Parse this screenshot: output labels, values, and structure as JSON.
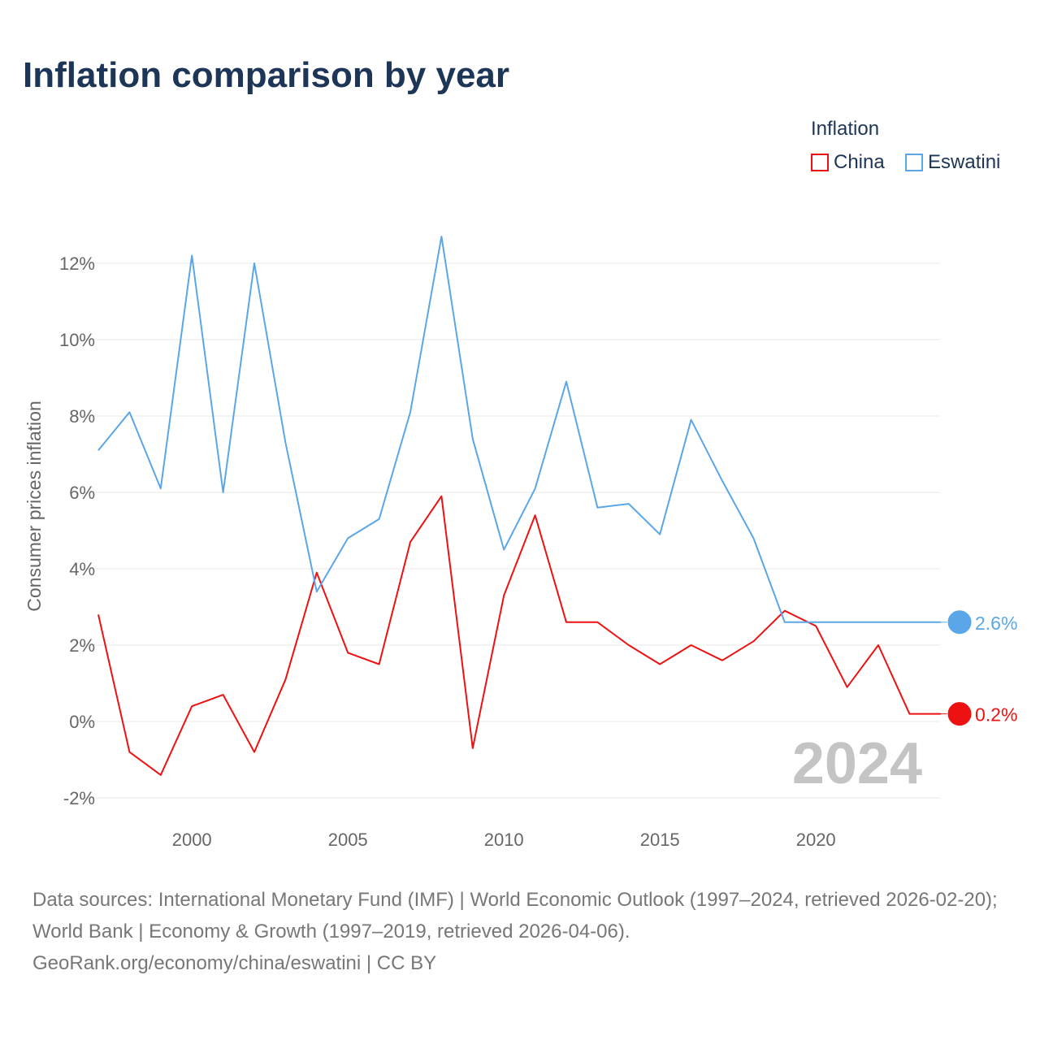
{
  "title": "Inflation comparison by year",
  "legend": {
    "title": "Inflation",
    "items": [
      {
        "label": "China",
        "color": "#ee1111"
      },
      {
        "label": "Eswatini",
        "color": "#5ba6e8"
      }
    ]
  },
  "year_watermark": "2024",
  "source": {
    "line1": "Data sources: International Monetary Fund (IMF) | World Economic Outlook (1997–2024, retrieved 2026-02-20); World Bank | Economy & Growth (1997–2019, retrieved 2026-04-06).",
    "line2": "GeoRank.org/economy/china/eswatini | CC BY"
  },
  "chart_data": {
    "type": "line",
    "title": "Inflation comparison by year",
    "xlabel": "",
    "ylabel": "Consumer prices inflation",
    "xlim": [
      1997,
      2024
    ],
    "ylim": [
      -2.6,
      13
    ],
    "yticks": [
      -2,
      0,
      2,
      4,
      6,
      8,
      10,
      12
    ],
    "ytick_labels": [
      "-2%",
      "0%",
      "2%",
      "4%",
      "6%",
      "8%",
      "10%",
      "12%"
    ],
    "xticks": [
      2000,
      2005,
      2010,
      2015,
      2020
    ],
    "xtick_labels": [
      "2000",
      "2005",
      "2010",
      "2015",
      "2020"
    ],
    "grid": true,
    "legend_position": "top-right",
    "x": [
      1997,
      1998,
      1999,
      2000,
      2001,
      2002,
      2003,
      2004,
      2005,
      2006,
      2007,
      2008,
      2009,
      2010,
      2011,
      2012,
      2013,
      2014,
      2015,
      2016,
      2017,
      2018,
      2019,
      2020,
      2021,
      2022,
      2023,
      2024
    ],
    "series": [
      {
        "name": "China",
        "color": "#ee1111",
        "end_label": "0.2%",
        "values": [
          2.8,
          -0.8,
          -1.4,
          0.4,
          0.7,
          -0.8,
          1.1,
          3.9,
          1.8,
          1.5,
          4.7,
          5.9,
          -0.7,
          3.3,
          5.4,
          2.6,
          2.6,
          2.0,
          1.5,
          2.0,
          1.6,
          2.1,
          2.9,
          2.5,
          0.9,
          2.0,
          0.2,
          0.2
        ]
      },
      {
        "name": "Eswatini",
        "color": "#5ba6e8",
        "end_label": "2.6%",
        "values": [
          7.1,
          8.1,
          6.1,
          12.2,
          6.0,
          12.0,
          7.3,
          3.4,
          4.8,
          5.3,
          8.1,
          12.7,
          7.4,
          4.5,
          6.1,
          8.9,
          5.6,
          5.7,
          4.9,
          7.9,
          6.3,
          4.8,
          2.6,
          2.6,
          2.6,
          2.6,
          2.6,
          2.6
        ]
      }
    ]
  }
}
